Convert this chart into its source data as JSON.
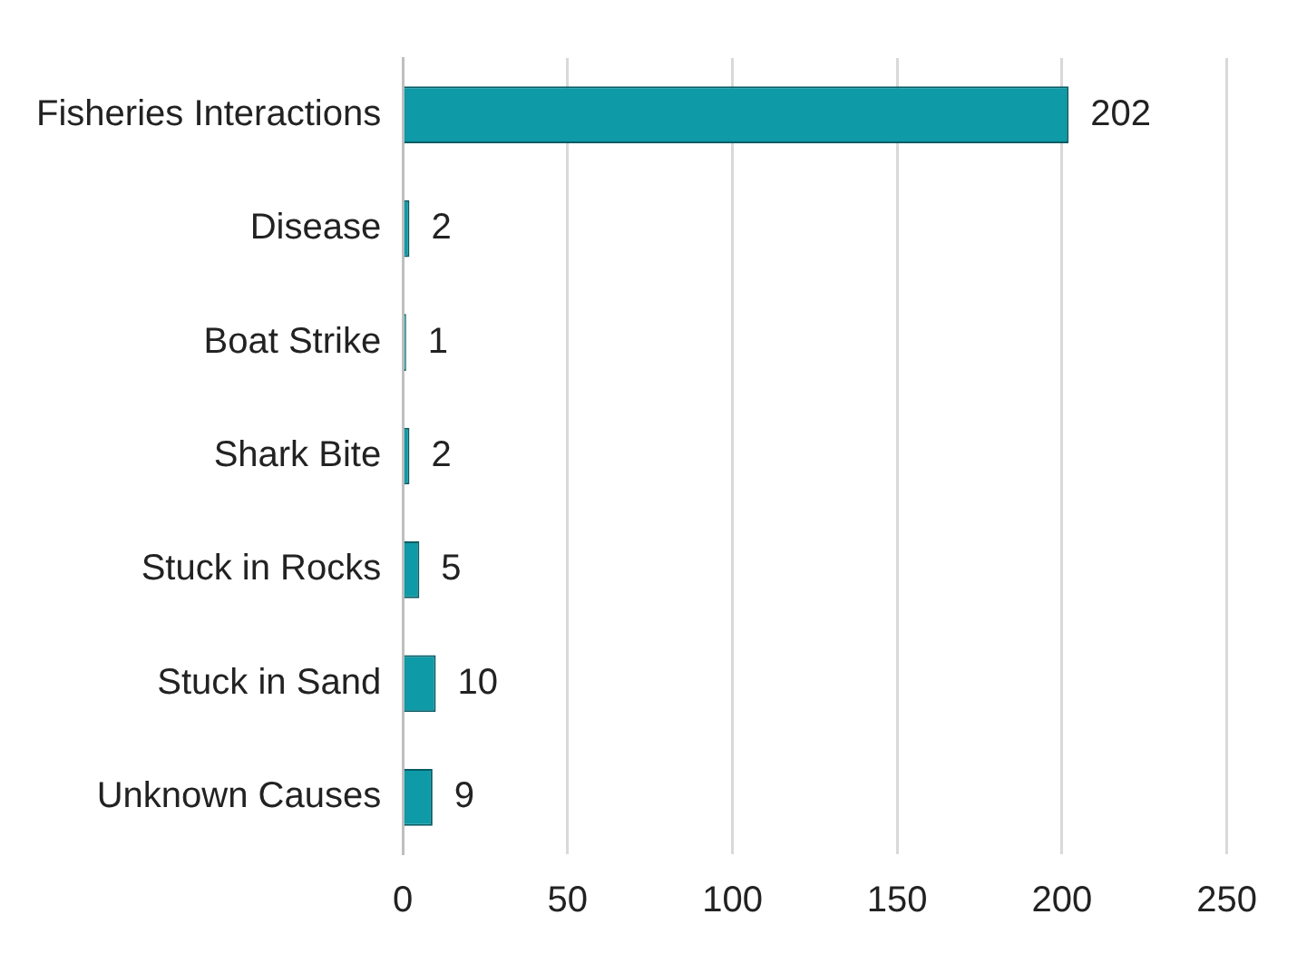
{
  "chart_data": {
    "type": "bar",
    "orientation": "horizontal",
    "categories": [
      "Fisheries Interactions",
      "Disease",
      "Boat Strike",
      "Shark Bite",
      "Stuck in Rocks",
      "Stuck in Sand",
      "Unknown Causes"
    ],
    "values": [
      202,
      2,
      1,
      2,
      5,
      10,
      9
    ],
    "color": "#0e9aa7",
    "xlim": [
      0,
      250
    ],
    "xticks": [
      0,
      50,
      100,
      150,
      200,
      250
    ],
    "grid": "x",
    "data_labels": true
  }
}
